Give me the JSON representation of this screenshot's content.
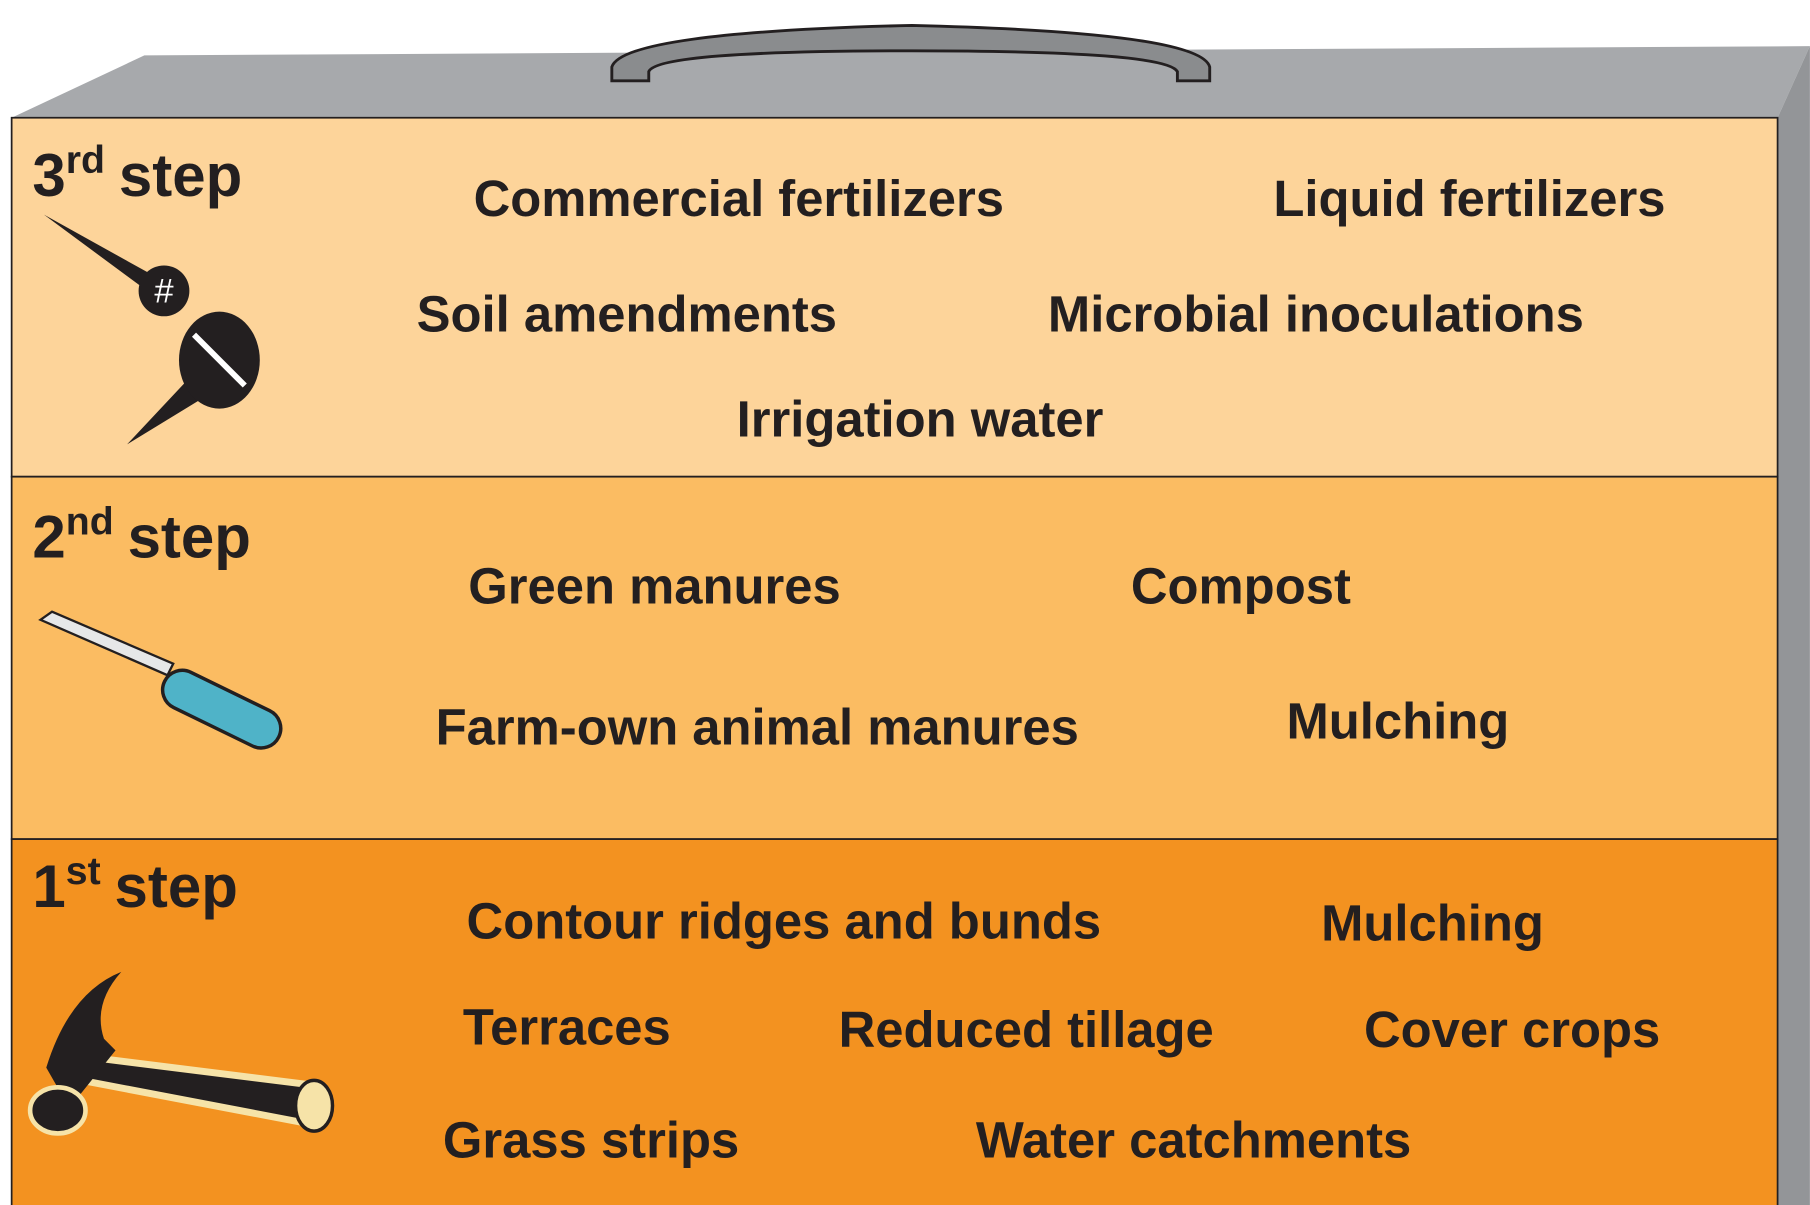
{
  "steps": [
    {
      "number": "3",
      "suffix": "rd",
      "word": "step",
      "items": [
        "Commercial fertilizers",
        "Liquid fertilizers",
        "Soil amendments",
        "Microbial inoculations",
        "Irrigation water"
      ]
    },
    {
      "number": "2",
      "suffix": "nd",
      "word": "step",
      "items": [
        "Green manures",
        "Compost",
        "Farm-own animal manures",
        "Mulching"
      ]
    },
    {
      "number": "1",
      "suffix": "st",
      "word": "step",
      "items": [
        "Contour ridges and bunds",
        "Mulching",
        "Terraces",
        "Reduced tillage",
        "Cover crops",
        "Grass strips",
        "Water catchments"
      ]
    }
  ]
}
